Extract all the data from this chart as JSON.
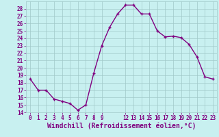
{
  "x": [
    0,
    1,
    2,
    3,
    4,
    5,
    6,
    7,
    8,
    9,
    10,
    11,
    12,
    13,
    14,
    15,
    16,
    17,
    18,
    19,
    20,
    21,
    22,
    23
  ],
  "y": [
    18.5,
    17.0,
    17.0,
    15.8,
    15.5,
    15.2,
    14.3,
    15.0,
    19.3,
    23.0,
    25.5,
    27.3,
    28.5,
    28.5,
    27.3,
    27.3,
    25.0,
    24.2,
    24.3,
    24.1,
    23.2,
    21.5,
    18.8,
    18.5
  ],
  "line_color": "#800080",
  "marker": "+",
  "marker_color": "#800080",
  "bg_color": "#c8f0f0",
  "grid_color": "#a0c8c8",
  "xlabel": "Windchill (Refroidissement éolien,°C)",
  "ylabel": "",
  "ylim": [
    14,
    29
  ],
  "xlim": [
    -0.5,
    23.5
  ],
  "yticks": [
    14,
    15,
    16,
    17,
    18,
    19,
    20,
    21,
    22,
    23,
    24,
    25,
    26,
    27,
    28
  ],
  "xticks": [
    0,
    1,
    2,
    3,
    4,
    5,
    6,
    7,
    8,
    9,
    12,
    13,
    14,
    15,
    16,
    17,
    18,
    19,
    20,
    21,
    22,
    23
  ],
  "tick_label_color": "#800080",
  "xlabel_color": "#800080",
  "xlabel_fontsize": 7,
  "tick_fontsize": 5.5,
  "line_width": 1.0,
  "marker_size": 3
}
